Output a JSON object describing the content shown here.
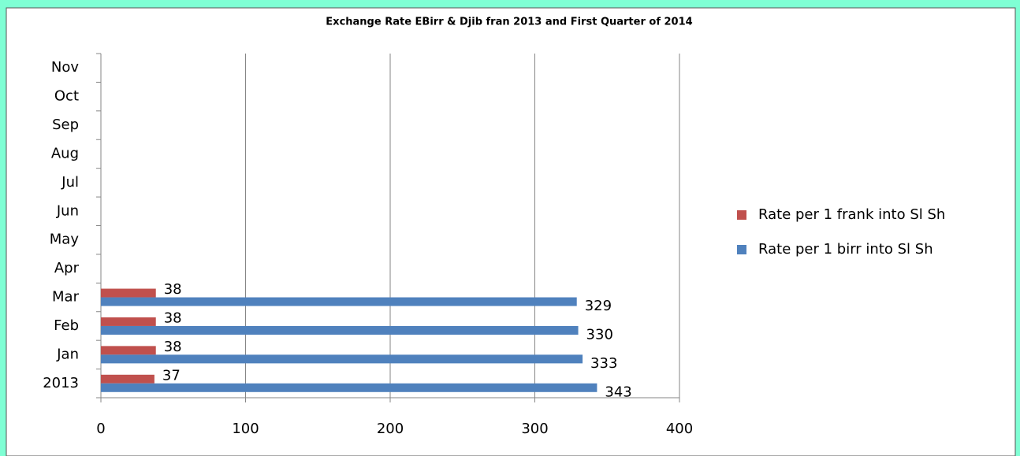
{
  "chart_data": {
    "type": "hbar",
    "title": "Exchange Rate EBirr & Djib fran 2013 and First Quarter of 2014",
    "categories": [
      "2013",
      "Jan",
      "Feb",
      "Mar",
      "Apr",
      "May",
      "Jun",
      "Jul",
      "Aug",
      "Sep",
      "Oct",
      "Nov"
    ],
    "series": [
      {
        "name": "Rate per 1 frank into Sl Sh",
        "color": "#c0504d",
        "values": [
          37,
          38,
          38,
          38,
          null,
          null,
          null,
          null,
          null,
          null,
          null,
          null
        ]
      },
      {
        "name": "Rate per 1 birr into Sl Sh",
        "color": "#4f81bd",
        "values": [
          343,
          333,
          330,
          329,
          null,
          null,
          null,
          null,
          null,
          null,
          null,
          null
        ]
      }
    ],
    "xlim": [
      0,
      400
    ],
    "xticks": [
      0,
      100,
      200,
      300,
      400
    ],
    "grid": true,
    "legend": "right"
  }
}
